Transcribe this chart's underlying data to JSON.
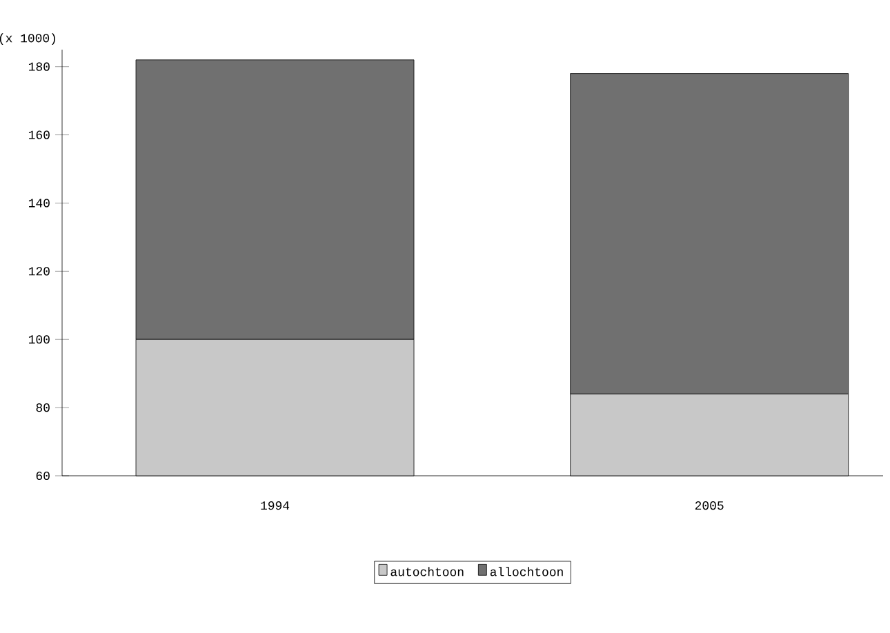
{
  "chart_data": {
    "type": "bar",
    "stacked": true,
    "ylabel": "(x 1000)",
    "categories": [
      "1994",
      "2005"
    ],
    "series": [
      {
        "name": "autochtoon",
        "color": "#c8c8c8",
        "values": [
          100,
          84
        ]
      },
      {
        "name": "allochtoon",
        "color": "#707070",
        "values": [
          82,
          94
        ]
      }
    ],
    "ylim": [
      60,
      185
    ],
    "yticks": [
      60,
      80,
      100,
      120,
      140,
      160,
      180
    ],
    "legend": "bottom",
    "grid": false
  }
}
